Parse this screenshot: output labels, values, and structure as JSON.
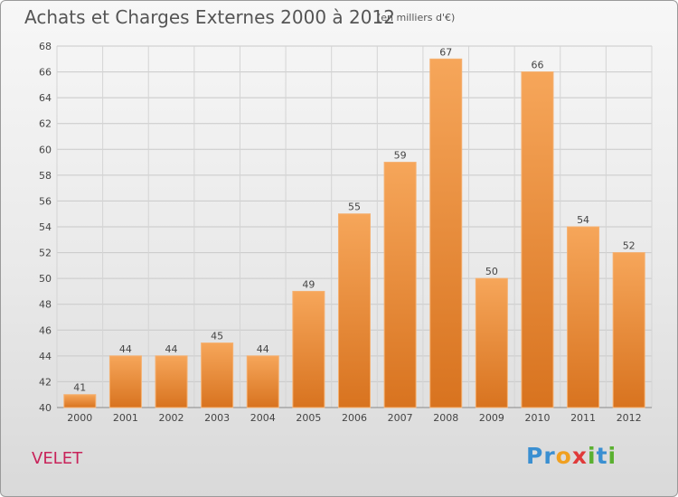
{
  "chart_data": {
    "type": "bar",
    "title": "Achats et Charges Externes 2000 à 2012",
    "subtitle": "(en milliers d'€)",
    "categories": [
      "2000",
      "2001",
      "2002",
      "2003",
      "2004",
      "2005",
      "2006",
      "2007",
      "2008",
      "2009",
      "2010",
      "2011",
      "2012"
    ],
    "values": [
      41,
      44,
      44,
      45,
      44,
      49,
      55,
      59,
      67,
      50,
      66,
      54,
      52
    ],
    "ylim": [
      40,
      68
    ],
    "yticks": [
      40,
      42,
      44,
      46,
      48,
      50,
      52,
      54,
      56,
      58,
      60,
      62,
      64,
      66,
      68
    ],
    "grid": true,
    "bar_color": "#f0913a"
  },
  "commune": "VELET",
  "logo": {
    "letters": [
      "P",
      "r",
      "o",
      "x",
      "i",
      "t",
      "i"
    ],
    "colors": [
      "#3a8fd1",
      "#3a8fd1",
      "#f0a020",
      "#e03a3a",
      "#5ab030",
      "#3a8fd1",
      "#5ab030"
    ]
  }
}
